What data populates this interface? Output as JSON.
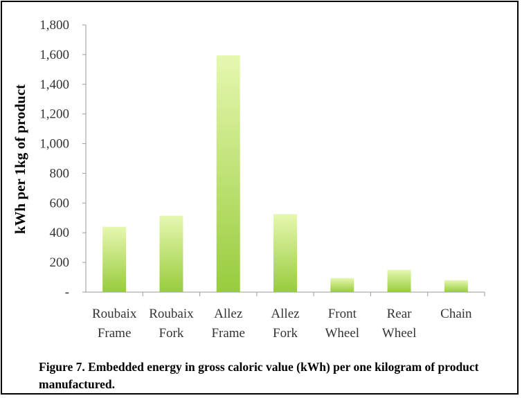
{
  "chart_data": {
    "type": "bar",
    "categories": [
      [
        "Roubaix",
        "Frame"
      ],
      [
        "Roubaix",
        "Fork"
      ],
      [
        "Allez",
        "Frame"
      ],
      [
        "Allez",
        "Fork"
      ],
      [
        "Front",
        "Wheel"
      ],
      [
        "Rear",
        "Wheel"
      ],
      [
        "Chain"
      ]
    ],
    "values": [
      440,
      515,
      1595,
      525,
      95,
      150,
      80
    ],
    "ylabel": "kWh per 1kg of  product",
    "xlabel": "",
    "ylim": [
      0,
      1800
    ],
    "yticks": [
      0,
      200,
      400,
      600,
      800,
      1000,
      1200,
      1400,
      1600,
      1800
    ],
    "ytick_labels": [
      "-",
      "200",
      "400",
      "600",
      "800",
      "1,000",
      "1,200",
      "1,400",
      "1,600",
      "1,800"
    ],
    "grid": false,
    "legend": "none",
    "colors": {
      "bar_light": "#e6f7b0",
      "bar_dark": "#98cc3d",
      "axis": "#9a9a9a"
    }
  },
  "caption": "Figure 7. Embedded energy in gross caloric value (kWh) per one kilogram of product manufactured."
}
